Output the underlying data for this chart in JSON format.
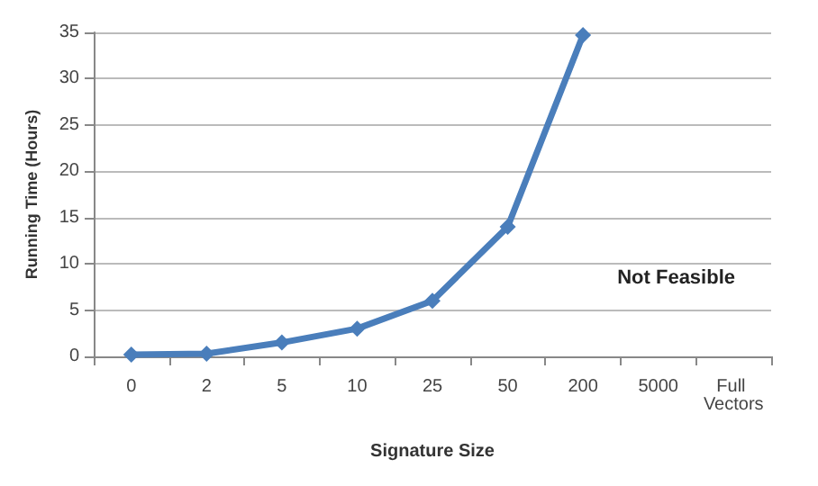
{
  "chart_data": {
    "type": "line",
    "xlabel": "Signature Size",
    "ylabel": "Running Time (Hours)",
    "categories": [
      "0",
      "2",
      "5",
      "10",
      "25",
      "50",
      "200",
      "5000",
      "Full Vectors"
    ],
    "series": [
      {
        "color": "#4a7ebb",
        "values": [
          0.2,
          0.3,
          1.5,
          3,
          6,
          14,
          34.7,
          null,
          null
        ]
      }
    ],
    "ylim": [
      0,
      35
    ],
    "yticks": [
      0,
      5,
      10,
      15,
      20,
      25,
      30,
      35
    ],
    "grid": "y",
    "marker": "diamond",
    "line_style": "solid",
    "annotations": [
      "Not Feasible"
    ]
  }
}
